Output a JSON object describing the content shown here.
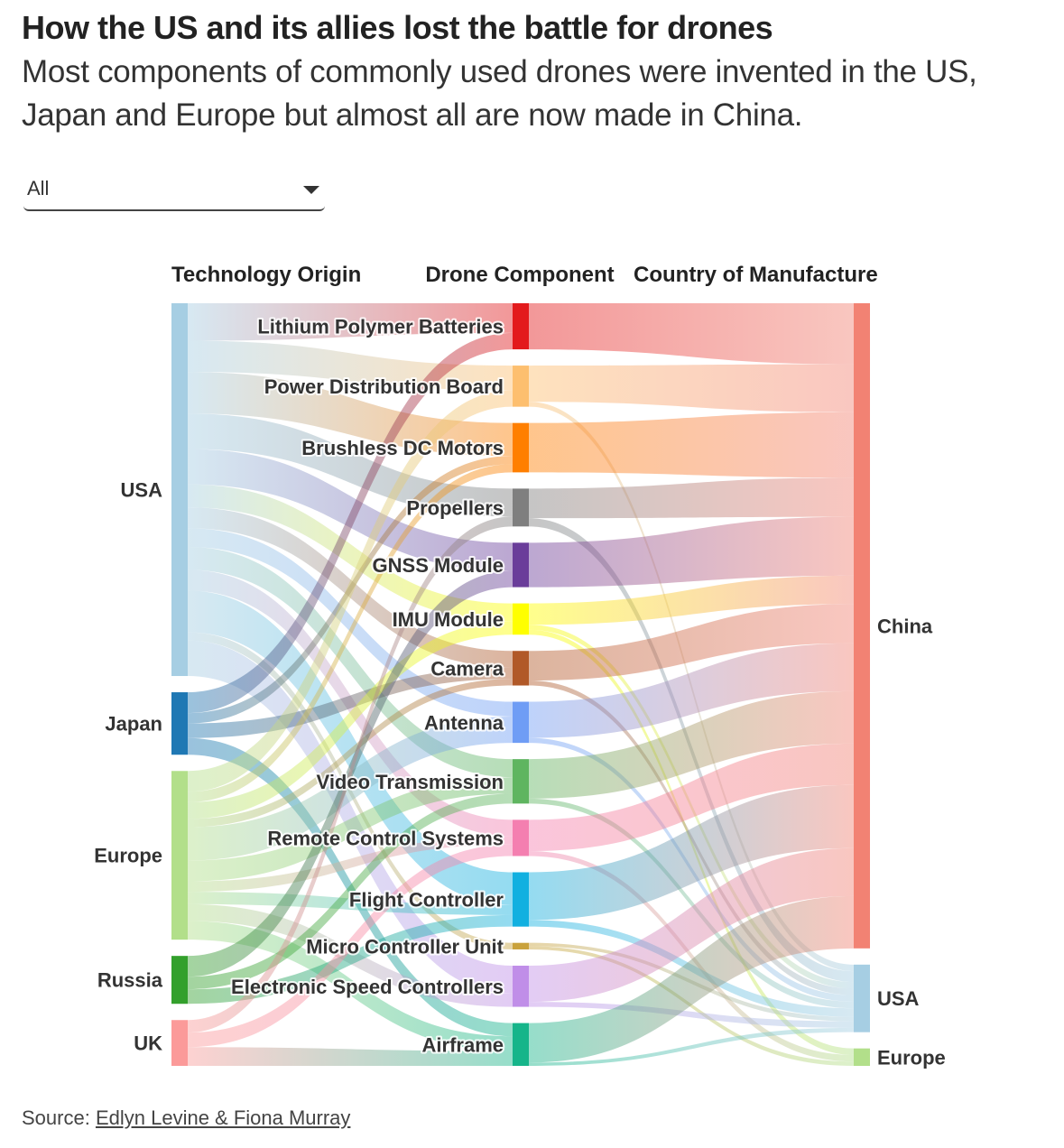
{
  "header": {
    "title": "How the US and its allies lost the battle for drones",
    "subtitle": "Most components of commonly used drones were invented in the US, Japan and Europe but almost all are now made in China."
  },
  "filter": {
    "selected": "All"
  },
  "source": {
    "label": "Source:",
    "link_text": "Edlyn Levine & Fiona Murray"
  },
  "chart_data": {
    "type": "sankey",
    "column_headers": [
      "Technology Origin",
      "Drone Component",
      "Country of Manufacture"
    ],
    "origins": [
      {
        "name": "USA",
        "color": "#a6cee3"
      },
      {
        "name": "Japan",
        "color": "#1f78b4"
      },
      {
        "name": "Europe",
        "color": "#b2df8a"
      },
      {
        "name": "Russia",
        "color": "#33a02c"
      },
      {
        "name": "UK",
        "color": "#fb9a99"
      }
    ],
    "components": [
      {
        "name": "Lithium Polymer Batteries",
        "color": "#e31a1c"
      },
      {
        "name": "Power Distribution Board",
        "color": "#fdbf6f"
      },
      {
        "name": "Brushless DC Motors",
        "color": "#ff7f00"
      },
      {
        "name": "Propellers",
        "color": "#7f7f7f"
      },
      {
        "name": "GNSS Module",
        "color": "#6a3d9a"
      },
      {
        "name": "IMU Module",
        "color": "#ffff00"
      },
      {
        "name": "Camera",
        "color": "#b15928"
      },
      {
        "name": "Antenna",
        "color": "#6f9df5"
      },
      {
        "name": "Video Transmission",
        "color": "#5fb560"
      },
      {
        "name": "Remote Control Systems",
        "color": "#f47fb0"
      },
      {
        "name": "Flight Controller",
        "color": "#12b0e0"
      },
      {
        "name": "Micro Controller Unit",
        "color": "#c9a23c"
      },
      {
        "name": "Electronic Speed Controllers",
        "color": "#c08ee8"
      },
      {
        "name": "Airframe",
        "color": "#16b58a"
      }
    ],
    "manufacturers": [
      {
        "name": "China",
        "color": "#f28273"
      },
      {
        "name": "USA",
        "color": "#a6cee3"
      },
      {
        "name": "Europe",
        "color": "#b2df8a"
      }
    ],
    "origin_links": [
      {
        "from": "USA",
        "to": "Lithium Polymer Batteries",
        "value": 1.8
      },
      {
        "from": "USA",
        "to": "Power Distribution Board",
        "value": 1.5
      },
      {
        "from": "USA",
        "to": "Brushless DC Motors",
        "value": 2.0
      },
      {
        "from": "USA",
        "to": "Propellers",
        "value": 1.7
      },
      {
        "from": "USA",
        "to": "GNSS Module",
        "value": 1.7
      },
      {
        "from": "USA",
        "to": "IMU Module",
        "value": 1.1
      },
      {
        "from": "USA",
        "to": "Camera",
        "value": 1.0
      },
      {
        "from": "USA",
        "to": "Antenna",
        "value": 0.9
      },
      {
        "from": "USA",
        "to": "Video Transmission",
        "value": 1.1
      },
      {
        "from": "USA",
        "to": "Remote Control Systems",
        "value": 1.0
      },
      {
        "from": "USA",
        "to": "Flight Controller",
        "value": 2.0
      },
      {
        "from": "USA",
        "to": "Micro Controller Unit",
        "value": 0.4
      },
      {
        "from": "USA",
        "to": "Electronic Speed Controllers",
        "value": 1.7
      },
      {
        "from": "Japan",
        "to": "Lithium Polymer Batteries",
        "value": 1.0
      },
      {
        "from": "Japan",
        "to": "Brushless DC Motors",
        "value": 0.5
      },
      {
        "from": "Japan",
        "to": "Camera",
        "value": 0.7
      },
      {
        "from": "Japan",
        "to": "Airframe",
        "value": 0.8
      },
      {
        "from": "Europe",
        "to": "Power Distribution Board",
        "value": 1.0
      },
      {
        "from": "Europe",
        "to": "Brushless DC Motors",
        "value": 0.5
      },
      {
        "from": "Europe",
        "to": "IMU Module",
        "value": 0.8
      },
      {
        "from": "Europe",
        "to": "Camera",
        "value": 0.4
      },
      {
        "from": "Europe",
        "to": "Antenna",
        "value": 1.6
      },
      {
        "from": "Europe",
        "to": "Video Transmission",
        "value": 1.0
      },
      {
        "from": "Europe",
        "to": "Remote Control Systems",
        "value": 0.5
      },
      {
        "from": "Europe",
        "to": "Flight Controller",
        "value": 0.6
      },
      {
        "from": "Europe",
        "to": "Electronic Speed Controllers",
        "value": 0.8
      },
      {
        "from": "Europe",
        "to": "Airframe",
        "value": 0.9
      },
      {
        "from": "Russia",
        "to": "GNSS Module",
        "value": 1.0
      },
      {
        "from": "Russia",
        "to": "Video Transmission",
        "value": 0.6
      },
      {
        "from": "Russia",
        "to": "Flight Controller",
        "value": 0.7
      },
      {
        "from": "UK",
        "to": "Propellers",
        "value": 0.6
      },
      {
        "from": "UK",
        "to": "Remote Control Systems",
        "value": 0.7
      },
      {
        "from": "UK",
        "to": "Airframe",
        "value": 0.9
      }
    ],
    "manufacture_links": [
      {
        "from": "Lithium Polymer Batteries",
        "to": "China",
        "value": 2.8
      },
      {
        "from": "Power Distribution Board",
        "to": "China",
        "value": 2.2
      },
      {
        "from": "Power Distribution Board",
        "to": "USA",
        "value": 0.3
      },
      {
        "from": "Brushless DC Motors",
        "to": "China",
        "value": 3.0
      },
      {
        "from": "Propellers",
        "to": "China",
        "value": 1.8
      },
      {
        "from": "Propellers",
        "to": "USA",
        "value": 0.5
      },
      {
        "from": "GNSS Module",
        "to": "China",
        "value": 2.7
      },
      {
        "from": "IMU Module",
        "to": "China",
        "value": 1.3
      },
      {
        "from": "IMU Module",
        "to": "USA",
        "value": 0.3
      },
      {
        "from": "IMU Module",
        "to": "Europe",
        "value": 0.3
      },
      {
        "from": "Camera",
        "to": "China",
        "value": 1.8
      },
      {
        "from": "Camera",
        "to": "USA",
        "value": 0.3
      },
      {
        "from": "Antenna",
        "to": "China",
        "value": 2.2
      },
      {
        "from": "Antenna",
        "to": "USA",
        "value": 0.3
      },
      {
        "from": "Video Transmission",
        "to": "China",
        "value": 2.4
      },
      {
        "from": "Video Transmission",
        "to": "USA",
        "value": 0.3
      },
      {
        "from": "Remote Control Systems",
        "to": "China",
        "value": 1.9
      },
      {
        "from": "Remote Control Systems",
        "to": "Europe",
        "value": 0.3
      },
      {
        "from": "Flight Controller",
        "to": "China",
        "value": 2.9
      },
      {
        "from": "Flight Controller",
        "to": "USA",
        "value": 0.4
      },
      {
        "from": "Micro Controller Unit",
        "to": "USA",
        "value": 0.2
      },
      {
        "from": "Micro Controller Unit",
        "to": "Europe",
        "value": 0.2
      },
      {
        "from": "Electronic Speed Controllers",
        "to": "China",
        "value": 2.2
      },
      {
        "from": "Electronic Speed Controllers",
        "to": "USA",
        "value": 0.3
      },
      {
        "from": "Airframe",
        "to": "China",
        "value": 2.4
      },
      {
        "from": "Airframe",
        "to": "USA",
        "value": 0.2
      }
    ]
  }
}
